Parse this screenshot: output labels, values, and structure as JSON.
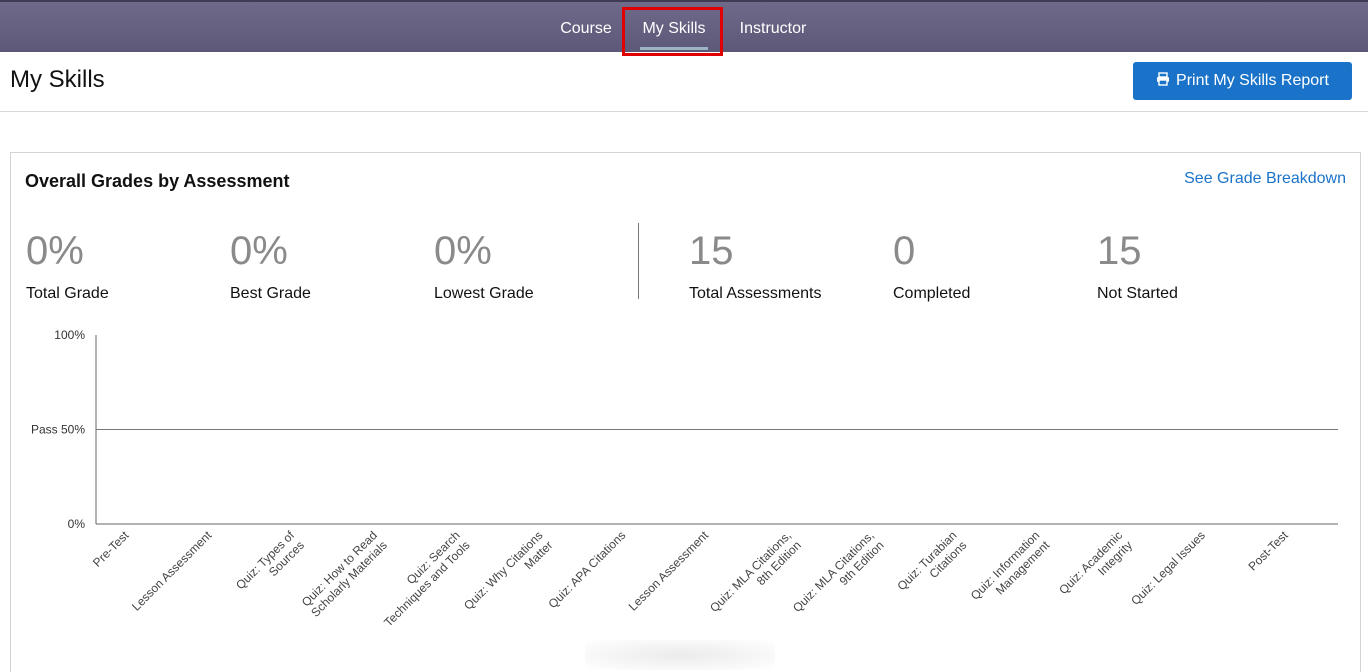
{
  "nav": {
    "tabs": [
      {
        "label": "Course"
      },
      {
        "label": "My Skills"
      },
      {
        "label": "Instructor"
      }
    ]
  },
  "header": {
    "title": "My Skills",
    "print_button": "Print My Skills Report"
  },
  "panel": {
    "title": "Overall Grades by Assessment",
    "breakdown_link": "See Grade Breakdown",
    "stats": [
      {
        "value": "0%",
        "label": "Total Grade"
      },
      {
        "value": "0%",
        "label": "Best Grade"
      },
      {
        "value": "0%",
        "label": "Lowest Grade"
      },
      {
        "value": "15",
        "label": "Total Assessments"
      },
      {
        "value": "0",
        "label": "Completed"
      },
      {
        "value": "15",
        "label": "Not Started"
      }
    ]
  },
  "chart_data": {
    "type": "bar",
    "categories": [
      "Pre-Test",
      "Lesson Assessment",
      "Quiz: Types of Sources",
      "Quiz: How to Read Scholarly Materials",
      "Quiz: Search Techniques and Tools",
      "Quiz: Why Citations Matter",
      "Quiz: APA Citations",
      "Lesson Assessment",
      "Quiz: MLA Citations, 8th Edition",
      "Quiz: MLA Citations, 9th Edition",
      "Quiz: Turabian Citations",
      "Quiz: Information Management",
      "Quiz: Academic Integrity",
      "Quiz: Legal Issues",
      "Post-Test"
    ],
    "label_lines": [
      [
        "Pre-Test"
      ],
      [
        "Lesson Assessment"
      ],
      [
        "Quiz: Types of",
        "Sources"
      ],
      [
        "Quiz: How to Read",
        "Scholarly Materials"
      ],
      [
        "Quiz: Search",
        "Techniques and Tools"
      ],
      [
        "Quiz: Why Citations",
        "Matter"
      ],
      [
        "Quiz: APA Citations"
      ],
      [
        "Lesson Assessment"
      ],
      [
        "Quiz: MLA Citations,",
        "8th Edition"
      ],
      [
        "Quiz: MLA Citations,",
        "9th Edition"
      ],
      [
        "Quiz: Turabian",
        "Citations"
      ],
      [
        "Quiz: Information",
        "Management"
      ],
      [
        "Quiz: Academic",
        "Integrity"
      ],
      [
        "Quiz: Legal Issues"
      ],
      [
        "Post-Test"
      ]
    ],
    "values": [
      0,
      0,
      0,
      0,
      0,
      0,
      0,
      0,
      0,
      0,
      0,
      0,
      0,
      0,
      0
    ],
    "ylim": [
      0,
      100
    ],
    "yticks": [
      {
        "value": 100,
        "label": "100%"
      },
      {
        "value": 50,
        "label": "Pass 50%"
      },
      {
        "value": 0,
        "label": "0%"
      }
    ],
    "pass_line": 50
  }
}
